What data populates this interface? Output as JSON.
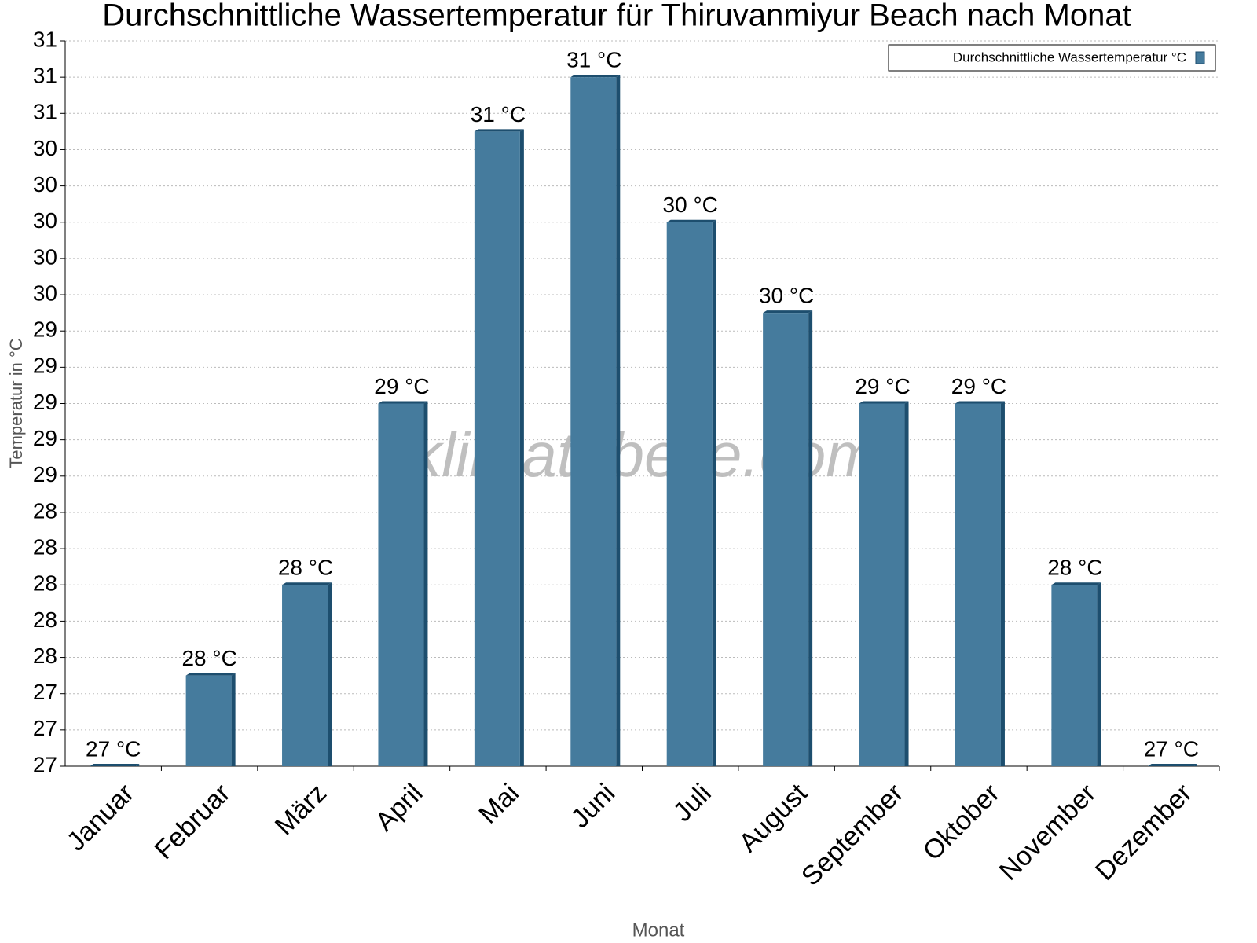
{
  "chart_data": {
    "type": "bar",
    "title": "Durchschnittliche Wassertemperatur für Thiruvanmiyur Beach nach Monat",
    "x_label": "Monat",
    "y_label": "Temperatur in °C",
    "watermark": "klimatabelle.com",
    "legend": "top-right",
    "grid": true,
    "categories": [
      "Januar",
      "Februar",
      "März",
      "April",
      "Mai",
      "Juni",
      "Juli",
      "August",
      "September",
      "Oktober",
      "November",
      "Dezember"
    ],
    "series": [
      {
        "name": "Durchschnittliche Wassertemperatur °C",
        "color": "#457b9d",
        "values": [
          27,
          27.5,
          28,
          29,
          30.5,
          30.8,
          30,
          29.5,
          29,
          29,
          28,
          27
        ],
        "value_labels": [
          "27 °C",
          "28 °C",
          "28 °C",
          "29 °C",
          "31 °C",
          "31 °C",
          "30 °C",
          "30 °C",
          "29 °C",
          "29 °C",
          "28 °C",
          "27 °C"
        ]
      }
    ],
    "ylim": [
      27,
      31
    ],
    "yticks": [
      {
        "value": 27,
        "label": "27"
      },
      {
        "value": 27.2,
        "label": "27"
      },
      {
        "value": 27.4,
        "label": "27"
      },
      {
        "value": 27.6,
        "label": "28"
      },
      {
        "value": 27.8,
        "label": "28"
      },
      {
        "value": 28,
        "label": "28"
      },
      {
        "value": 28.2,
        "label": "28"
      },
      {
        "value": 28.4,
        "label": "28"
      },
      {
        "value": 28.6,
        "label": "29"
      },
      {
        "value": 28.8,
        "label": "29"
      },
      {
        "value": 29,
        "label": "29"
      },
      {
        "value": 29.2,
        "label": "29"
      },
      {
        "value": 29.4,
        "label": "29"
      },
      {
        "value": 29.6,
        "label": "30"
      },
      {
        "value": 29.8,
        "label": "30"
      },
      {
        "value": 30,
        "label": "30"
      },
      {
        "value": 30.2,
        "label": "30"
      },
      {
        "value": 30.4,
        "label": "30"
      },
      {
        "value": 30.6,
        "label": "31"
      },
      {
        "value": 30.8,
        "label": "31"
      },
      {
        "value": 31,
        "label": "31"
      }
    ]
  }
}
